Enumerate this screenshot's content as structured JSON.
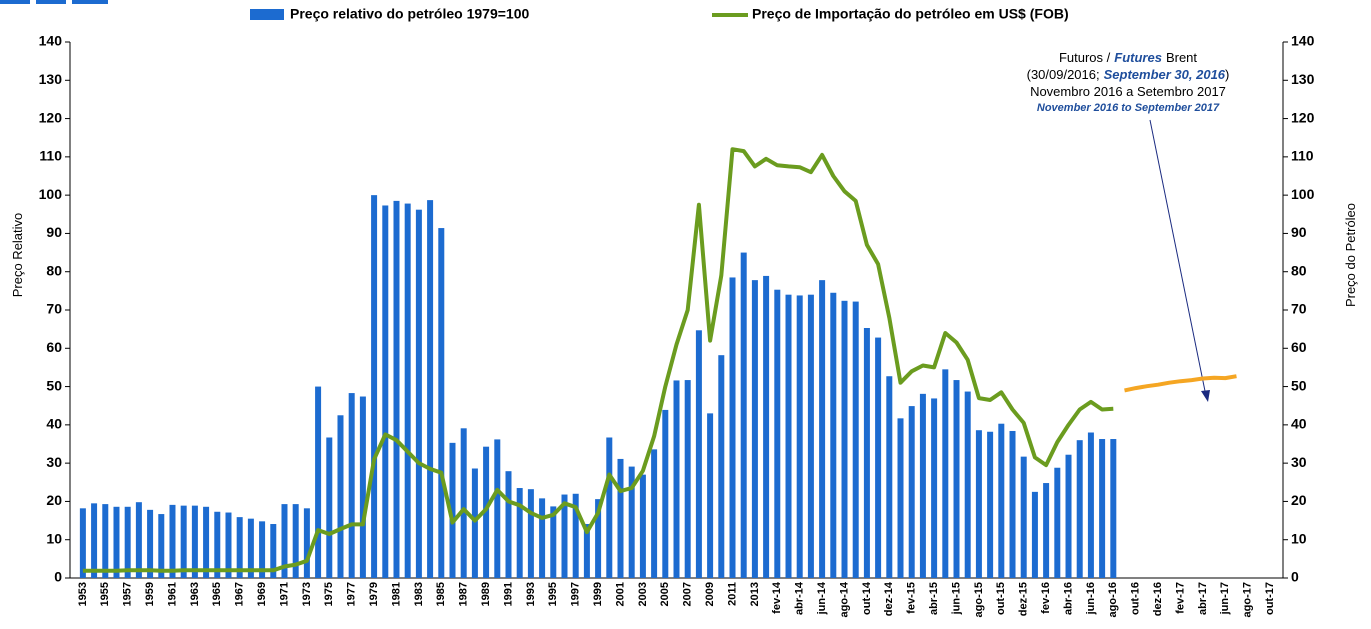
{
  "chart_data": {
    "type": "bar",
    "categories": [
      "1953",
      null,
      "1955",
      null,
      "1957",
      null,
      "1959",
      null,
      "1961",
      null,
      "1963",
      null,
      "1965",
      null,
      "1967",
      null,
      "1969",
      null,
      "1971",
      null,
      "1973",
      null,
      "1975",
      null,
      "1977",
      null,
      "1979",
      null,
      "1981",
      null,
      "1983",
      null,
      "1985",
      null,
      "1987",
      null,
      "1989",
      null,
      "1991",
      null,
      "1993",
      null,
      "1995",
      null,
      "1997",
      null,
      "1999",
      null,
      "2001",
      null,
      "2003",
      null,
      "2005",
      null,
      "2007",
      null,
      "2009",
      null,
      "2011",
      null,
      "2013",
      null,
      "fev-14",
      null,
      "abr-14",
      null,
      "jun-14",
      null,
      "ago-14",
      null,
      "out-14",
      null,
      "dez-14",
      null,
      "fev-15",
      null,
      "abr-15",
      null,
      "jun-15",
      null,
      "ago-15",
      null,
      "out-15",
      null,
      "dez-15",
      null,
      "fev-16",
      null,
      "abr-16",
      null,
      "jun-16",
      null,
      "ago-16",
      null,
      "out-16",
      null,
      "dez-16",
      null,
      "fev-17",
      null,
      "abr-17",
      null,
      "jun-17",
      null,
      "ago-17",
      null,
      "out-17"
    ],
    "series": [
      {
        "name": "Preço relativo do petróleo 1979=100",
        "type": "bar",
        "color": "#1c6bd0",
        "values": [
          18.2,
          19.5,
          19.3,
          18.6,
          18.6,
          19.8,
          17.8,
          16.7,
          19.1,
          18.9,
          18.9,
          18.6,
          17.3,
          17.1,
          15.9,
          15.5,
          14.8,
          14.1,
          19.3,
          19.3,
          18.2,
          50,
          36.7,
          42.5,
          48.3,
          47.4,
          100,
          97.3,
          98.5,
          97.8,
          96.2,
          98.7,
          91.4,
          35.3,
          39.1,
          28.6,
          34.3,
          36.2,
          27.9,
          23.5,
          23.2,
          20.8,
          18.7,
          21.8,
          22,
          14.1,
          20.6,
          36.7,
          31.1,
          29.1,
          27,
          33.6,
          43.9,
          51.6,
          51.7,
          64.7,
          43,
          58.2,
          78.5,
          85,
          77.8,
          78.9,
          75.3,
          74,
          73.8,
          74,
          77.8,
          74.5,
          72.4,
          72.2,
          65.3,
          62.8,
          52.7,
          41.7,
          44.9,
          48.1,
          46.9,
          54.5,
          51.7,
          48.7,
          38.6,
          38.2,
          40.3,
          38.4,
          31.7,
          22.5,
          24.8,
          28.8,
          32.2,
          36,
          38,
          36.3,
          36.3,
          null,
          null,
          null,
          null,
          null,
          null,
          null,
          null,
          null,
          null,
          null,
          null,
          null,
          null
        ]
      },
      {
        "name": "Preço de Importação do petróleo em US$ (FOB)",
        "type": "line",
        "color": "#6b9c1f",
        "axis": "y2",
        "values": [
          1.9,
          1.9,
          1.9,
          1.9,
          2,
          2,
          2,
          1.9,
          1.9,
          2,
          2,
          2,
          2,
          2,
          2,
          2,
          2,
          2,
          3,
          3.5,
          4.5,
          12.5,
          11.5,
          12.8,
          14,
          14,
          31,
          37.5,
          36,
          33,
          30,
          28.5,
          27.5,
          14.5,
          18,
          15,
          18,
          23,
          20,
          19,
          17,
          15.7,
          16.5,
          19.5,
          18.5,
          12,
          17,
          27,
          22.7,
          23.5,
          28,
          37,
          50,
          61,
          70,
          97.5,
          62,
          79,
          112,
          111.5,
          107.5,
          109.5,
          107.8,
          107.5,
          107.3,
          106,
          110.5,
          105,
          101,
          98.5,
          87,
          82,
          68,
          51,
          54,
          55.5,
          55,
          64,
          61.5,
          57,
          47,
          46.5,
          48.5,
          44,
          40.5,
          31.5,
          29.5,
          35.5,
          40,
          44,
          46,
          44,
          44.2,
          null,
          null,
          null,
          null,
          null,
          null,
          null,
          null,
          null,
          null,
          null,
          null,
          null,
          null
        ]
      },
      {
        "type": "line",
        "color": "#f5a623",
        "axis": "y2",
        "values": [
          null,
          null,
          null,
          null,
          null,
          null,
          null,
          null,
          null,
          null,
          null,
          null,
          null,
          null,
          null,
          null,
          null,
          null,
          null,
          null,
          null,
          null,
          null,
          null,
          null,
          null,
          null,
          null,
          null,
          null,
          null,
          null,
          null,
          null,
          null,
          null,
          null,
          null,
          null,
          null,
          null,
          null,
          null,
          null,
          null,
          null,
          null,
          null,
          null,
          null,
          null,
          null,
          null,
          null,
          null,
          null,
          null,
          null,
          null,
          null,
          null,
          null,
          null,
          null,
          null,
          null,
          null,
          null,
          null,
          null,
          null,
          null,
          null,
          null,
          null,
          null,
          null,
          null,
          null,
          null,
          null,
          null,
          null,
          null,
          null,
          null,
          null,
          null,
          null,
          null,
          null,
          null,
          null,
          49,
          49.6,
          50.1,
          50.5,
          51,
          51.4,
          51.7,
          52.1,
          52.3,
          52.2,
          52.7,
          null,
          null,
          null
        ]
      }
    ],
    "ylabel": "Preço Relativo",
    "y2label": "Preço do Petróleo",
    "ylim": [
      0,
      140
    ],
    "yticks": [
      0,
      10,
      20,
      30,
      40,
      50,
      60,
      70,
      80,
      90,
      100,
      110,
      120,
      130,
      140
    ],
    "y2lim": [
      0,
      140
    ],
    "y2ticks": [
      0,
      10,
      20,
      30,
      40,
      50,
      60,
      70,
      80,
      90,
      100,
      110,
      120,
      130,
      140
    ],
    "annotation": {
      "futures_pt": "Futuros /",
      "futures_en": "Futures",
      "brent": "Brent",
      "date_pt": "(30/09/2016;",
      "date_en": "September 30, 2016",
      "date_close": ")",
      "period_pt": "Novembro 2016 a Setembro 2017",
      "period_en": "November 2016 to September 2017"
    },
    "legend": "top"
  }
}
